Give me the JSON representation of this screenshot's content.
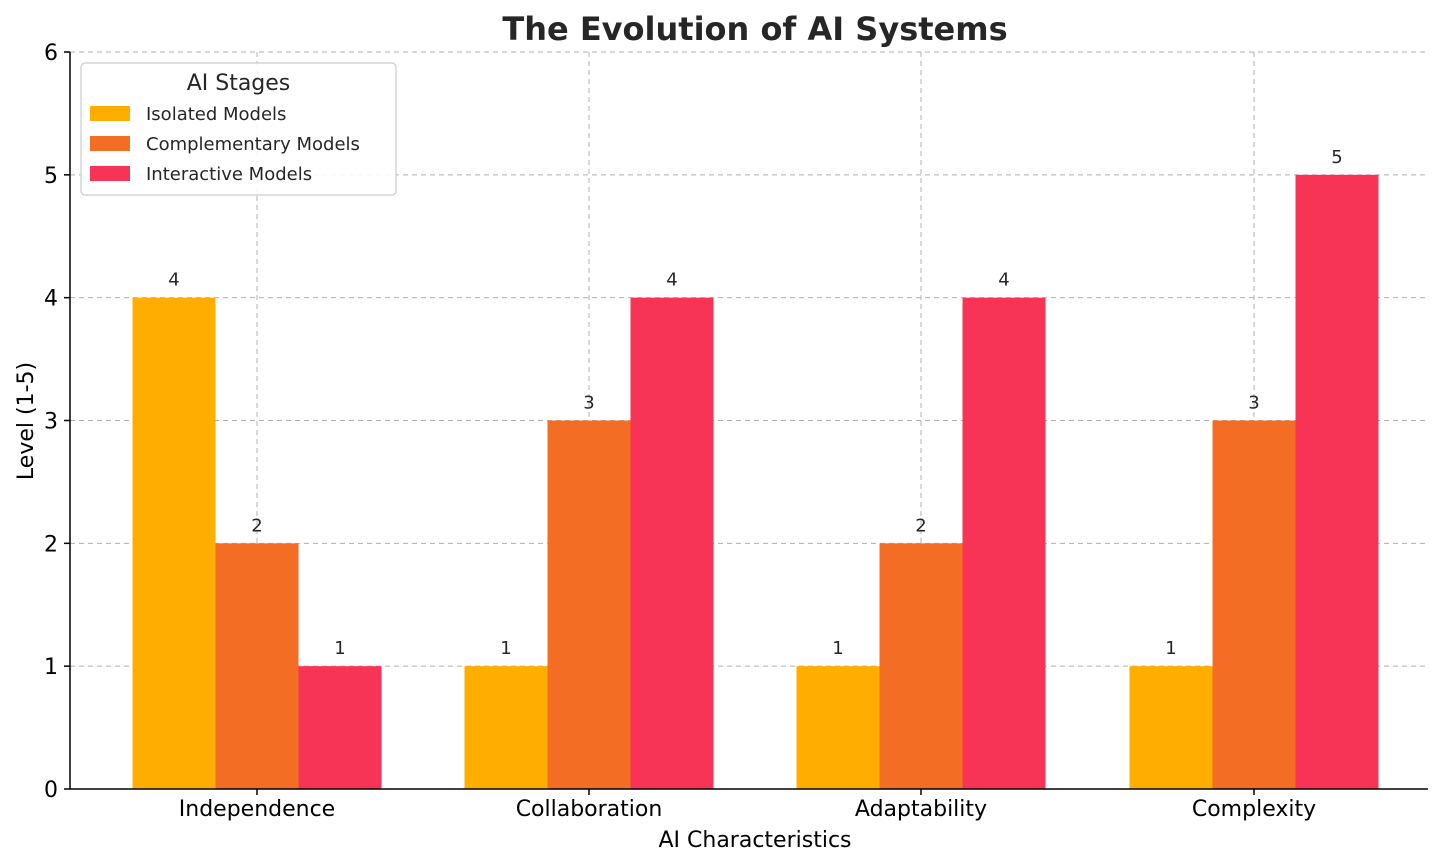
{
  "chart_data": {
    "type": "bar",
    "title": "The Evolution of AI Systems",
    "xlabel": "AI Characteristics",
    "ylabel": "Level (1-5)",
    "ylim": [
      0,
      6
    ],
    "yticks": [
      "0",
      "1",
      "2",
      "3",
      "4",
      "5",
      "6"
    ],
    "grid": true,
    "categories": [
      "Independence",
      "Collaboration",
      "Adaptability",
      "Complexity"
    ],
    "series": [
      {
        "name": "Isolated Models",
        "color": "#FFAE00",
        "values": [
          4,
          1,
          1,
          1
        ]
      },
      {
        "name": "Complementary Models",
        "color": "#F46D25",
        "values": [
          2,
          3,
          2,
          3
        ]
      },
      {
        "name": "Interactive Models",
        "color": "#F73455",
        "values": [
          1,
          4,
          4,
          5
        ]
      }
    ],
    "legend": {
      "title": "AI Stages",
      "placement": "top-left"
    }
  }
}
